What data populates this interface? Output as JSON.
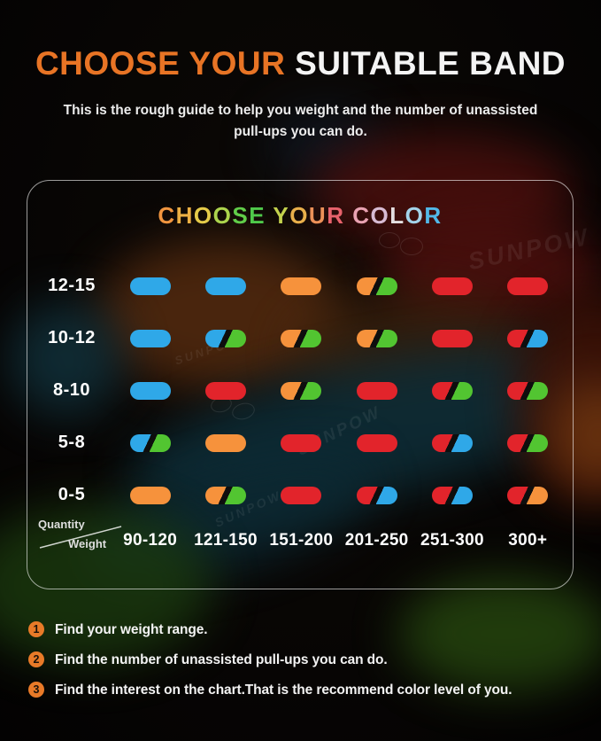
{
  "header": {
    "title_accent": "CHOOSE YOUR",
    "title_rest": " SUITABLE BAND",
    "subtitle_line1": "This is the rough guide to help you weight  and the number of unassisted",
    "subtitle_line2": "pull-ups you can do.",
    "accent_color": "#e87425"
  },
  "panel": {
    "title_letters": [
      {
        "ch": "C",
        "color": "#f0953f"
      },
      {
        "ch": "H",
        "color": "#edb044"
      },
      {
        "ch": "O",
        "color": "#e5cb49"
      },
      {
        "ch": "O",
        "color": "#acd44d"
      },
      {
        "ch": "S",
        "color": "#61cd49"
      },
      {
        "ch": "E",
        "color": "#4fc94a"
      },
      {
        "ch": " ",
        "color": "#ffffff"
      },
      {
        "ch": "Y",
        "color": "#c3d14d"
      },
      {
        "ch": "O",
        "color": "#e9af4b"
      },
      {
        "ch": "U",
        "color": "#ec9058"
      },
      {
        "ch": "R",
        "color": "#e7626c"
      },
      {
        "ch": " ",
        "color": "#ffffff"
      },
      {
        "ch": "C",
        "color": "#e9a2b2"
      },
      {
        "ch": "O",
        "color": "#d7bbd3"
      },
      {
        "ch": "L",
        "color": "#e4dee0"
      },
      {
        "ch": "O",
        "color": "#a3d3ea"
      },
      {
        "ch": "R",
        "color": "#52b8e8"
      }
    ]
  },
  "chart_data": {
    "type": "table",
    "title": "CHOOSE YOUR COLOR",
    "row_axis_label": "Quantity",
    "col_axis_label": "Weight",
    "rows": [
      "12-15",
      "10-12",
      "8-10",
      "5-8",
      "0-5"
    ],
    "columns": [
      "90-120",
      "121-150",
      "151-200",
      "201-250",
      "251-300",
      "300+"
    ],
    "cells": [
      [
        [
          "blue"
        ],
        [
          "blue"
        ],
        [
          "orange"
        ],
        [
          "orange",
          "green"
        ],
        [
          "red"
        ],
        [
          "red"
        ]
      ],
      [
        [
          "blue"
        ],
        [
          "blue",
          "green"
        ],
        [
          "orange",
          "green"
        ],
        [
          "orange",
          "green"
        ],
        [
          "red"
        ],
        [
          "red",
          "blue"
        ]
      ],
      [
        [
          "blue"
        ],
        [
          "red"
        ],
        [
          "orange",
          "green"
        ],
        [
          "red"
        ],
        [
          "red",
          "green"
        ],
        [
          "red",
          "green"
        ]
      ],
      [
        [
          "blue",
          "green"
        ],
        [
          "orange"
        ],
        [
          "red"
        ],
        [
          "red"
        ],
        [
          "red",
          "blue"
        ],
        [
          "red",
          "green"
        ]
      ],
      [
        [
          "orange"
        ],
        [
          "orange",
          "green"
        ],
        [
          "red"
        ],
        [
          "red",
          "blue"
        ],
        [
          "red",
          "blue"
        ],
        [
          "red",
          "orange"
        ]
      ]
    ],
    "band_colors": {
      "blue": "#2fa8e8",
      "orange": "#f6923c",
      "red": "#e2242b",
      "green": "#52c531"
    },
    "split_divider_color": "#0e0e0e"
  },
  "steps": [
    {
      "num": "1",
      "text": "Find your weight range."
    },
    {
      "num": "2",
      "text": "Find the number of unassisted pull-ups you can do."
    },
    {
      "num": "3",
      "text": "Find the interest on the chart.That is the recommend color level of you."
    }
  ],
  "watermark": {
    "text": "SUNPOW"
  }
}
